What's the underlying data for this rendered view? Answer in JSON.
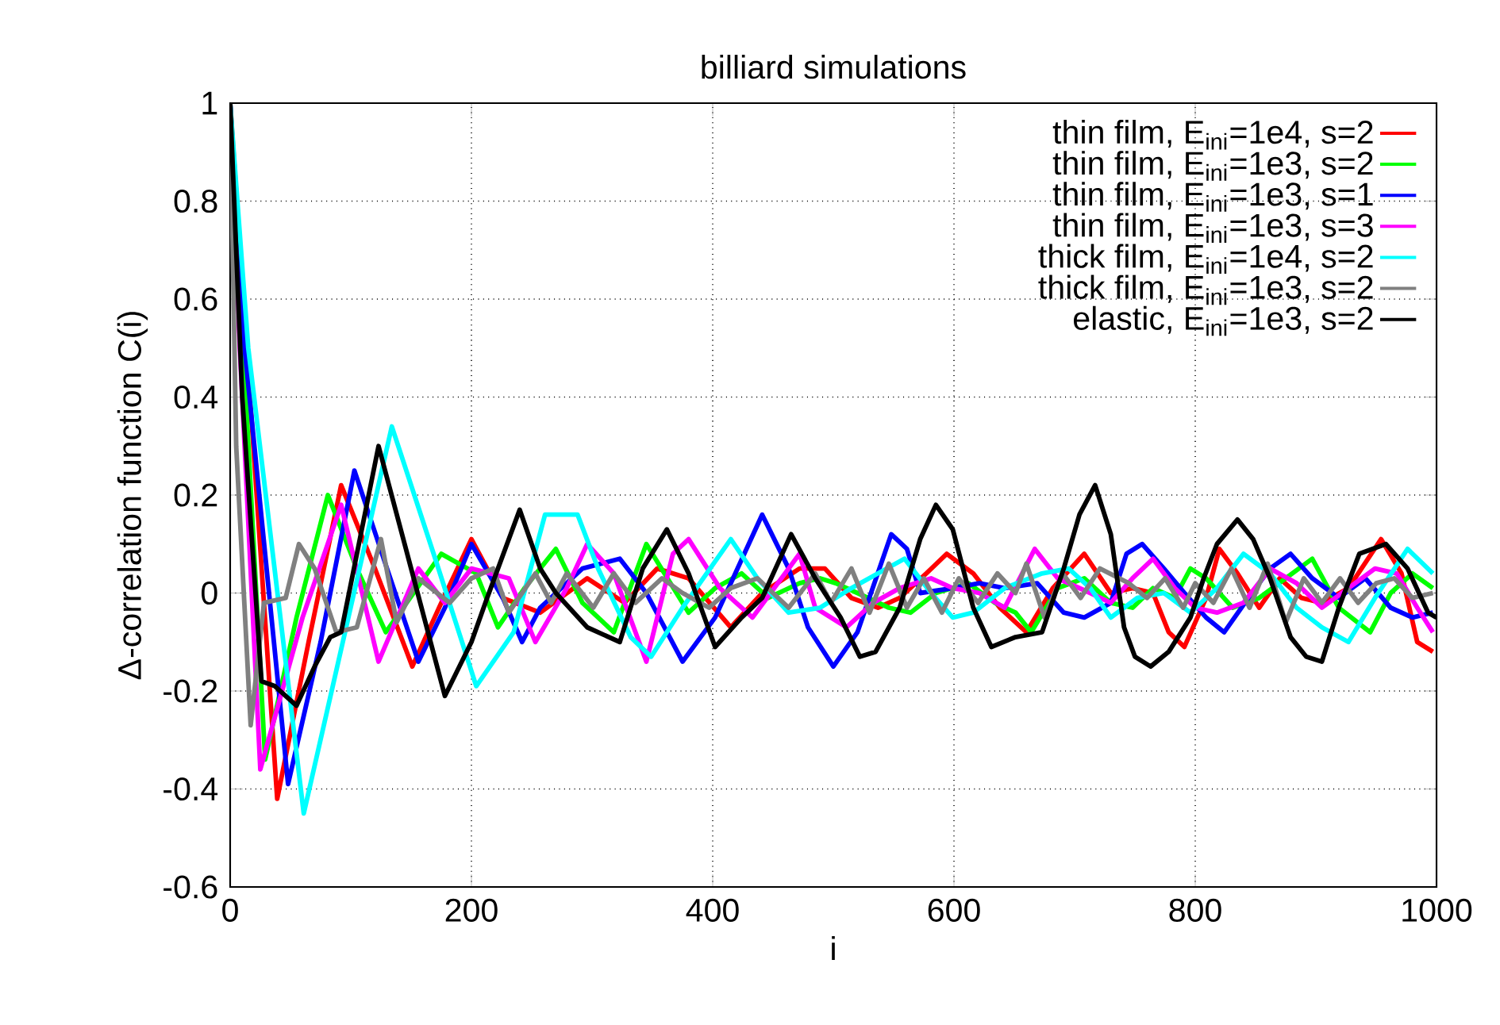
{
  "chart_data": {
    "type": "line",
    "title": "billiard simulations",
    "xlabel": "i",
    "ylabel": "Δ-correlation function C(i)",
    "xlim": [
      0,
      1000
    ],
    "ylim": [
      -0.6,
      1
    ],
    "xticks": [
      0,
      200,
      400,
      600,
      800,
      1000
    ],
    "yticks": [
      -0.6,
      -0.4,
      -0.2,
      0,
      0.2,
      0.4,
      0.6,
      0.8,
      1
    ],
    "grid": true,
    "legend": "top right",
    "series": [
      {
        "name": "thin film, E$_{ini}$=1e4, s=2",
        "color": "#ff0000",
        "x": [
          0,
          39,
          65,
          92,
          120,
          151,
          175,
          200,
          226,
          257,
          296,
          327,
          354,
          380,
          415,
          441,
          472,
          493,
          515,
          537,
          555,
          577,
          594,
          616,
          638,
          660,
          682,
          708,
          730,
          748,
          765,
          778,
          791,
          809,
          820,
          835,
          853,
          870,
          888,
          905,
          927,
          954,
          971,
          984,
          997
        ],
        "values": [
          1,
          -0.42,
          -0.1,
          0.22,
          0.05,
          -0.15,
          -0.02,
          0.11,
          -0.01,
          -0.04,
          0.03,
          -0.02,
          0.05,
          0.03,
          -0.07,
          0,
          0.05,
          0.05,
          -0.01,
          -0.03,
          -0.01,
          0.04,
          0.08,
          0.04,
          -0.03,
          -0.08,
          0.01,
          0.08,
          0,
          0.01,
          0,
          -0.08,
          -0.11,
          -0.01,
          0.09,
          0.04,
          -0.03,
          0.03,
          -0.01,
          -0.02,
          0.01,
          0.11,
          0.04,
          -0.1,
          -0.12
        ]
      },
      {
        "name": "thin film, E$_{ini}$=1e3, s=2",
        "color": "#00ff00",
        "x": [
          0,
          29,
          55,
          81,
          105,
          129,
          152,
          175,
          204,
          222,
          244,
          270,
          292,
          318,
          345,
          380,
          402,
          424,
          446,
          472,
          489,
          502,
          520,
          546,
          564,
          585,
          612,
          634,
          651,
          664,
          686,
          708,
          730,
          748,
          765,
          783,
          796,
          809,
          831,
          853,
          875,
          897,
          919,
          945,
          962,
          980,
          997
        ],
        "values": [
          1,
          -0.34,
          -0.05,
          0.2,
          0.05,
          -0.08,
          0,
          0.08,
          0.04,
          -0.07,
          0.01,
          0.09,
          -0.02,
          -0.08,
          0.1,
          -0.04,
          0.01,
          0.04,
          -0.01,
          0.02,
          0.03,
          0.02,
          0,
          -0.03,
          -0.04,
          0,
          0.02,
          -0.02,
          -0.04,
          -0.08,
          0.01,
          0.03,
          -0.02,
          -0.03,
          0.01,
          -0.01,
          0.05,
          0.03,
          -0.03,
          -0.01,
          0.03,
          0.07,
          -0.03,
          -0.08,
          0,
          0.04,
          0.01
        ]
      },
      {
        "name": "thin film, E$_{ini}$=1e3, s=1",
        "color": "#0000ff",
        "x": [
          0,
          12,
          48,
          75,
          103,
          130,
          156,
          178,
          200,
          226,
          242,
          257,
          292,
          323,
          345,
          375,
          402,
          441,
          463,
          479,
          500,
          520,
          548,
          561,
          572,
          599,
          621,
          642,
          669,
          691,
          708,
          730,
          743,
          756,
          774,
          791,
          809,
          824,
          844,
          862,
          879,
          897,
          919,
          941,
          962,
          980,
          997
        ],
        "values": [
          1,
          0.5,
          -0.39,
          -0.1,
          0.25,
          0.05,
          -0.14,
          -0.03,
          0.1,
          -0.01,
          -0.1,
          -0.03,
          0.05,
          0.07,
          0,
          -0.14,
          -0.05,
          0.16,
          0.05,
          -0.07,
          -0.15,
          -0.08,
          0.12,
          0.09,
          0,
          0.01,
          0.02,
          0.01,
          0.02,
          -0.04,
          -0.05,
          -0.02,
          0.08,
          0.1,
          0.05,
          0,
          -0.05,
          -0.08,
          -0.01,
          0.05,
          0.08,
          0.03,
          -0.01,
          0.03,
          -0.03,
          -0.05,
          -0.04
        ]
      },
      {
        "name": "thin film, E$_{ini}$=1e3, s=3",
        "color": "#ff00ff",
        "x": [
          0,
          8,
          25,
          60,
          92,
          123,
          156,
          178,
          200,
          231,
          253,
          279,
          296,
          318,
          345,
          367,
          380,
          406,
          433,
          472,
          485,
          511,
          533,
          555,
          581,
          599,
          621,
          642,
          667,
          686,
          713,
          730,
          748,
          765,
          783,
          800,
          818,
          840,
          862,
          884,
          905,
          927,
          949,
          967,
          984,
          997
        ],
        "values": [
          1,
          0.5,
          -0.36,
          -0.05,
          0.18,
          -0.14,
          0.05,
          -0.02,
          0.05,
          0.03,
          -0.1,
          0.01,
          0.1,
          0.04,
          -0.14,
          0.08,
          0.11,
          0.01,
          -0.05,
          0.08,
          -0.03,
          -0.07,
          -0.02,
          0.01,
          0.03,
          0.01,
          0,
          -0.03,
          0.09,
          0.03,
          0,
          -0.02,
          0.03,
          0.07,
          0.01,
          -0.03,
          -0.04,
          -0.02,
          0.05,
          0.02,
          -0.03,
          0.01,
          0.05,
          0.04,
          -0.03,
          -0.08
        ]
      },
      {
        "name": "thick film, E$_{ini}$=1e4, s=2",
        "color": "#00ffff",
        "x": [
          0,
          15,
          61,
          98,
          134,
          170,
          204,
          235,
          261,
          288,
          305,
          332,
          349,
          375,
          415,
          437,
          463,
          489,
          515,
          537,
          559,
          581,
          599,
          616,
          642,
          673,
          695,
          713,
          730,
          752,
          774,
          796,
          818,
          840,
          862,
          884,
          905,
          927,
          949,
          976,
          997
        ],
        "values": [
          1,
          0.5,
          -0.45,
          -0.05,
          0.34,
          0.07,
          -0.19,
          -0.08,
          0.16,
          0.16,
          0.05,
          -0.09,
          -0.13,
          -0.03,
          0.11,
          0.03,
          -0.04,
          -0.03,
          0.01,
          0.04,
          0.07,
          0,
          -0.05,
          -0.04,
          0.01,
          0.04,
          0.05,
          0.01,
          -0.05,
          -0.01,
          0,
          -0.04,
          0.01,
          0.08,
          0.04,
          -0.03,
          -0.07,
          -0.1,
          -0.01,
          0.09,
          0.04
        ]
      },
      {
        "name": "thick film, E$_{ini}$=1e3, s=2",
        "color": "#808080",
        "x": [
          0,
          5,
          17,
          28,
          46,
          57,
          70,
          88,
          105,
          125,
          138,
          156,
          182,
          200,
          218,
          231,
          253,
          266,
          279,
          301,
          318,
          336,
          358,
          375,
          397,
          415,
          437,
          463,
          485,
          498,
          515,
          530,
          546,
          561,
          575,
          590,
          604,
          620,
          636,
          651,
          660,
          675,
          690,
          705,
          721,
          745,
          760,
          775,
          790,
          800,
          815,
          830,
          845,
          860,
          875,
          890,
          905,
          920,
          935,
          950,
          965,
          980,
          997
        ],
        "values": [
          1,
          0.3,
          -0.27,
          -0.02,
          -0.01,
          0.1,
          0.05,
          -0.08,
          -0.07,
          0.11,
          -0.06,
          0.03,
          -0.02,
          0.03,
          0.05,
          -0.04,
          0.04,
          -0.02,
          0.04,
          -0.03,
          0.04,
          -0.02,
          0.03,
          0,
          -0.03,
          0.01,
          0.03,
          -0.03,
          0.04,
          -0.02,
          0.05,
          -0.04,
          0.06,
          -0.03,
          0.03,
          -0.04,
          0.03,
          -0.02,
          0.04,
          0,
          0.06,
          -0.05,
          0.04,
          -0.01,
          0.05,
          0.02,
          -0.01,
          0.03,
          -0.03,
          0.02,
          -0.02,
          0.05,
          -0.03,
          0.06,
          -0.06,
          0.03,
          -0.02,
          0.03,
          -0.02,
          0.02,
          0.03,
          -0.01,
          0
        ]
      },
      {
        "name": "elastic, E$_{ini}$=1e3, s=2",
        "color": "#000000",
        "x": [
          0,
          10,
          26,
          37,
          55,
          70,
          83,
          92,
          123,
          150,
          178,
          200,
          213,
          240,
          257,
          270,
          296,
          323,
          342,
          362,
          380,
          402,
          424,
          441,
          465,
          485,
          506,
          522,
          535,
          555,
          572,
          585,
          599,
          616,
          631,
          651,
          673,
          691,
          704,
          717,
          730,
          741,
          750,
          763,
          778,
          796,
          807,
          818,
          835,
          848,
          862,
          879,
          892,
          905,
          919,
          936,
          958,
          976,
          993,
          1000
        ],
        "values": [
          1,
          0.4,
          -0.18,
          -0.19,
          -0.23,
          -0.15,
          -0.09,
          -0.08,
          0.3,
          0.05,
          -0.21,
          -0.1,
          -0.01,
          0.17,
          0.05,
          0,
          -0.07,
          -0.1,
          0.05,
          0.13,
          0.04,
          -0.11,
          -0.05,
          -0.01,
          0.12,
          0.03,
          -0.05,
          -0.13,
          -0.12,
          -0.03,
          0.11,
          0.18,
          0.13,
          -0.03,
          -0.11,
          -0.09,
          -0.08,
          0.05,
          0.16,
          0.22,
          0.12,
          -0.07,
          -0.13,
          -0.15,
          -0.12,
          -0.05,
          0.03,
          0.1,
          0.15,
          0.11,
          0.03,
          -0.09,
          -0.13,
          -0.14,
          -0.03,
          0.08,
          0.1,
          0.05,
          -0.04,
          -0.05
        ]
      }
    ]
  }
}
